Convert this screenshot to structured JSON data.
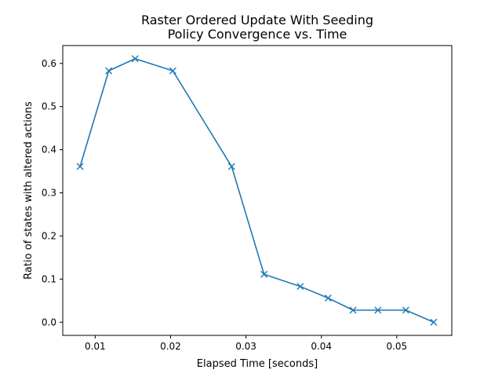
{
  "chart_data": {
    "type": "line",
    "title_line1": "Raster Ordered Update With Seeding",
    "title_line2": "Policy Convergence vs. Time",
    "xlabel": "Elapsed Time [seconds]",
    "ylabel": "Ratio of states with altered actions",
    "xlim": [
      0.0057,
      0.0573
    ],
    "ylim": [
      -0.0305,
      0.6415
    ],
    "x_ticks": [
      0.01,
      0.02,
      0.03,
      0.04,
      0.05
    ],
    "x_tick_labels": [
      "0.01",
      "0.02",
      "0.03",
      "0.04",
      "0.05"
    ],
    "y_ticks": [
      0.0,
      0.1,
      0.2,
      0.3,
      0.4,
      0.5,
      0.6
    ],
    "y_tick_labels": [
      "0.0",
      "0.1",
      "0.2",
      "0.3",
      "0.4",
      "0.5",
      "0.6"
    ],
    "grid": false,
    "line_color": "#1f77b4",
    "marker": "x",
    "x": [
      0.008,
      0.0118,
      0.0153,
      0.0203,
      0.0281,
      0.0324,
      0.0372,
      0.0409,
      0.0442,
      0.0475,
      0.0512,
      0.0549
    ],
    "y": [
      0.361,
      0.583,
      0.611,
      0.583,
      0.361,
      0.111,
      0.083,
      0.056,
      0.028,
      0.028,
      0.028,
      0.0
    ]
  }
}
